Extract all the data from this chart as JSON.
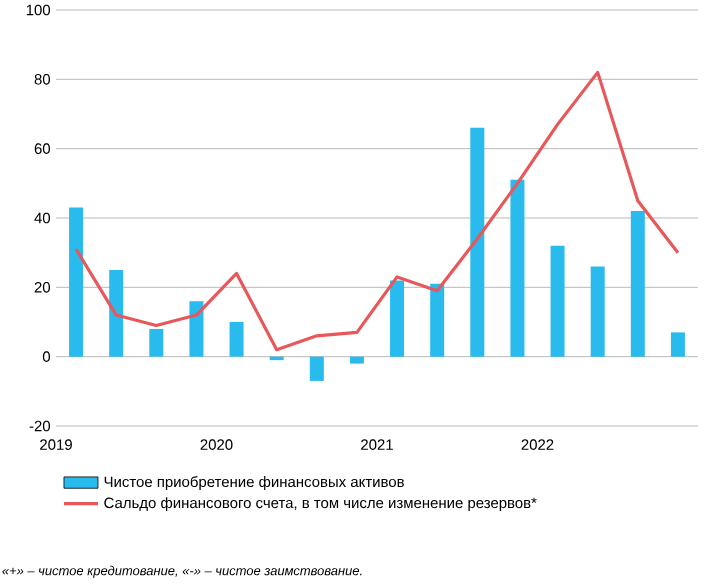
{
  "chart_data": {
    "type": "bar",
    "x": [
      2019.125,
      2019.375,
      2019.625,
      2019.875,
      2020.125,
      2020.375,
      2020.625,
      2020.875,
      2021.125,
      2021.375,
      2021.625,
      2021.875,
      2022.125,
      2022.375,
      2022.625,
      2022.875
    ],
    "series": [
      {
        "name": "Чистое приобретение финансовых активов",
        "color": "#29bbee",
        "values": [
          43,
          25,
          8,
          16,
          10,
          -1,
          -7,
          -2,
          22,
          21,
          66,
          51,
          32,
          26,
          42,
          7
        ]
      },
      {
        "name": "Сальдо финансового счета, в том числе изменение резервов*",
        "type": "line",
        "color": "#e8575a",
        "values": [
          31,
          12,
          9,
          12,
          24,
          2,
          6,
          7,
          23,
          19,
          34,
          50,
          67,
          82,
          45,
          30
        ]
      }
    ],
    "xlim": [
      2019,
      2023
    ],
    "xticks": [
      2019,
      2020,
      2021,
      2022
    ],
    "ylim": [
      -20,
      100
    ],
    "yticks": [
      -20,
      0,
      20,
      40,
      60,
      80,
      100
    ],
    "grid": "y",
    "legend": "bottom",
    "marker": "none",
    "line_style": "solid",
    "annotations": [
      "«+» – чистое кредитование, «-» – чистое заимствование."
    ]
  }
}
